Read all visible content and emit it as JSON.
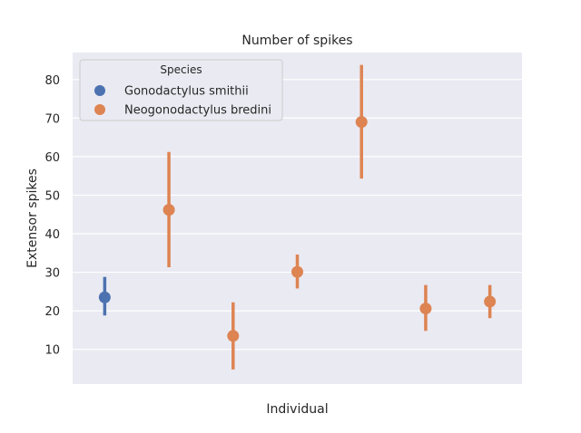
{
  "chart_data": {
    "type": "scatter",
    "title": "Number of spikes",
    "xlabel": "Individual",
    "ylabel": "Extensor spikes",
    "ylim": [
      1,
      87
    ],
    "yticks": [
      10,
      20,
      30,
      40,
      50,
      60,
      70,
      80
    ],
    "grid": true,
    "legend": {
      "title": "Species",
      "placement": "top-left",
      "entries": [
        "Gonodactylus smithii",
        "Neogonodactylus bredini"
      ]
    },
    "colors": {
      "Gonodactylus smithii": "#4c72b0",
      "Neogonodactylus bredini": "#dd8452",
      "background": "#eaeaf2",
      "grid": "#ffffff"
    },
    "points": [
      {
        "series": "Gonodactylus smithii",
        "y": 23.5,
        "low": 18.8,
        "high": 28.8
      },
      {
        "series": "Neogonodactylus bredini",
        "y": 46.2,
        "low": 31.3,
        "high": 61.2
      },
      {
        "series": "Neogonodactylus bredini",
        "y": 13.5,
        "low": 4.8,
        "high": 22.2
      },
      {
        "series": "Neogonodactylus bredini",
        "y": 30.1,
        "low": 25.8,
        "high": 34.6
      },
      {
        "series": "Neogonodactylus bredini",
        "y": 69.0,
        "low": 54.3,
        "high": 83.8
      },
      {
        "series": "Neogonodactylus bredini",
        "y": 20.6,
        "low": 14.8,
        "high": 26.7
      },
      {
        "series": "Neogonodactylus bredini",
        "y": 22.4,
        "low": 18.1,
        "high": 26.7
      }
    ]
  }
}
